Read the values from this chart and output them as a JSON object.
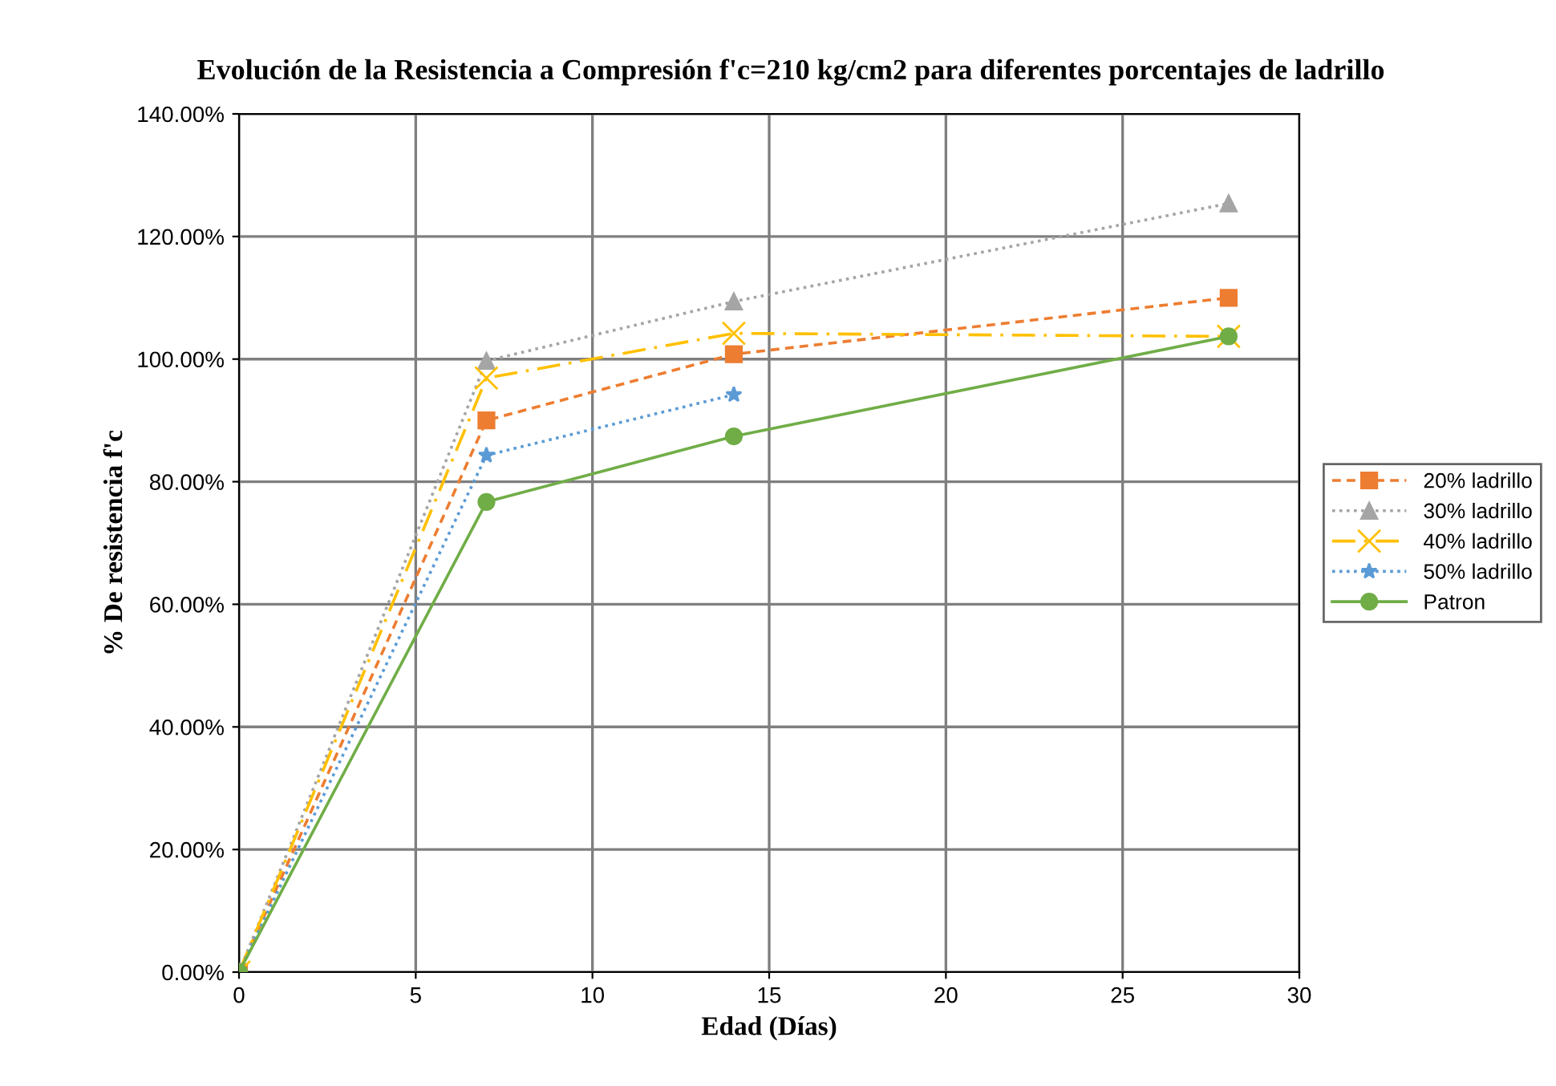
{
  "chart_data": {
    "type": "line",
    "title": "Evolución de la Resistencia a Compresión f'c=210 kg/cm2 para diferentes porcentajes de ladrillo",
    "xlabel": "Edad (Días)",
    "ylabel": "% De resistencia f'c",
    "x": [
      0,
      7,
      14,
      28
    ],
    "series": [
      {
        "name": "20% ladrillo",
        "color": "#ed7d31",
        "values": [
          0,
          90.0,
          100.8,
          110.0
        ],
        "marker": "square",
        "line_style": "dashed"
      },
      {
        "name": "30% ladrillo",
        "color": "#a5a5a5",
        "values": [
          0,
          99.7,
          109.4,
          125.4
        ],
        "marker": "triangle",
        "line_style": "dotted"
      },
      {
        "name": "40% ladrillo",
        "color": "#ffc000",
        "values": [
          0,
          96.9,
          104.2,
          103.7
        ],
        "marker": "cross",
        "line_style": "dashdot"
      },
      {
        "name": "50% ladrillo",
        "color": "#5b9bd5",
        "values": [
          0,
          84.3,
          94.2,
          null
        ],
        "marker": "star",
        "line_style": "dotted"
      },
      {
        "name": "Patron",
        "color": "#70ad47",
        "values": [
          0,
          76.7,
          87.4,
          103.7
        ],
        "marker": "circle",
        "line_style": "solid"
      }
    ],
    "xlim": [
      0,
      30
    ],
    "xticks": [
      0,
      5,
      10,
      15,
      20,
      25,
      30
    ],
    "ylim": [
      0,
      140
    ],
    "yticks": [
      {
        "value": 0,
        "label": "0.00%"
      },
      {
        "value": 20,
        "label": "20.00%"
      },
      {
        "value": 40,
        "label": "40.00%"
      },
      {
        "value": 60,
        "label": "60.00%"
      },
      {
        "value": 80,
        "label": "80.00%"
      },
      {
        "value": 100,
        "label": "100.00%"
      },
      {
        "value": 120,
        "label": "120.00%"
      },
      {
        "value": 140,
        "label": "140.00%"
      }
    ],
    "grid": true,
    "legend": "right"
  }
}
